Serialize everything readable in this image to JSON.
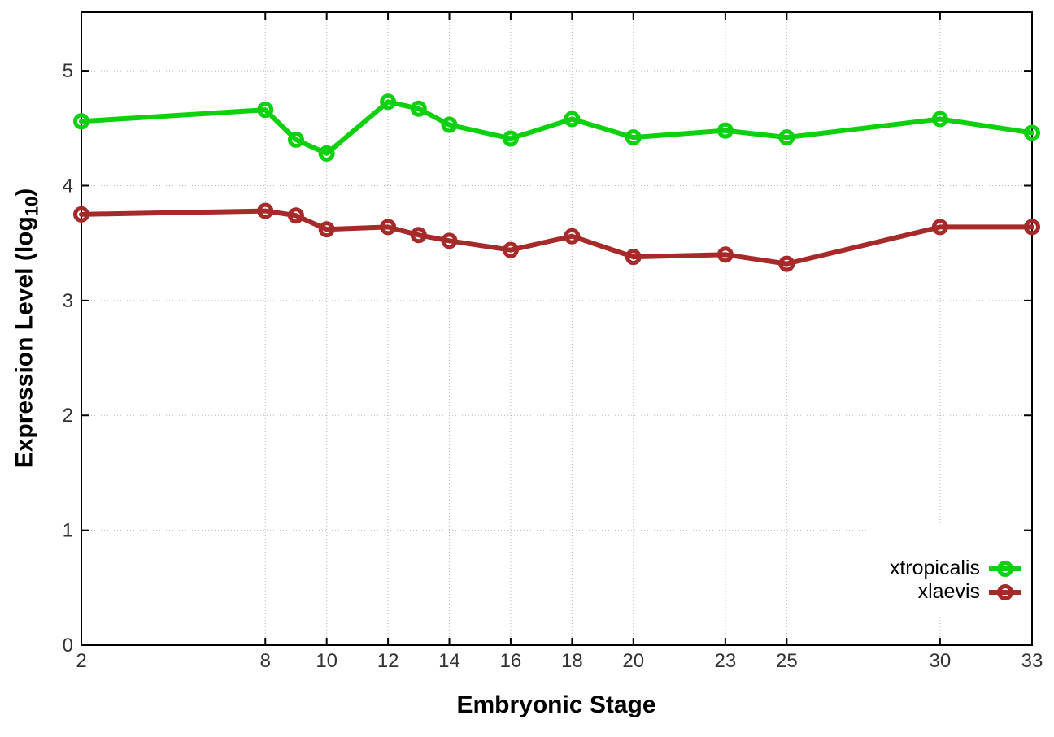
{
  "ui": {
    "ylabel_main": "Expression Level (log",
    "ylabel_sub": "10",
    "ylabel_close": ")"
  },
  "chart_data": {
    "type": "line",
    "title": "",
    "xlabel": "Embryonic Stage",
    "ylabel": "Expression Level (log10)",
    "x": [
      2,
      8,
      9,
      10,
      12,
      13,
      14,
      16,
      18,
      20,
      23,
      25,
      30,
      33
    ],
    "x_ticks": [
      "2",
      "8",
      "10",
      "12",
      "14",
      "16",
      "18",
      "20",
      "23",
      "25",
      "30",
      "33"
    ],
    "y_ticks": [
      "0",
      "1",
      "2",
      "3",
      "4",
      "5"
    ],
    "xlim": [
      2,
      33
    ],
    "ylim": [
      0,
      5.51
    ],
    "grid": true,
    "legend_position": "bottom-right",
    "colors": {
      "xtropicalis": "#0fd00f",
      "xlaevis": "#a62a2a",
      "grid": "#b5b5b5",
      "axis": "#000000",
      "tick_label": "#333333"
    },
    "series": [
      {
        "name": "xtropicalis",
        "color": "#0fd00f",
        "values": [
          4.56,
          4.66,
          4.4,
          4.28,
          4.73,
          4.67,
          4.53,
          4.41,
          4.58,
          4.42,
          4.48,
          4.42,
          4.58,
          4.46
        ]
      },
      {
        "name": "xlaevis",
        "color": "#a62a2a",
        "values": [
          3.75,
          3.78,
          3.74,
          3.62,
          3.64,
          3.57,
          3.52,
          3.44,
          3.56,
          3.38,
          3.4,
          3.32,
          3.64,
          3.64
        ]
      }
    ]
  }
}
